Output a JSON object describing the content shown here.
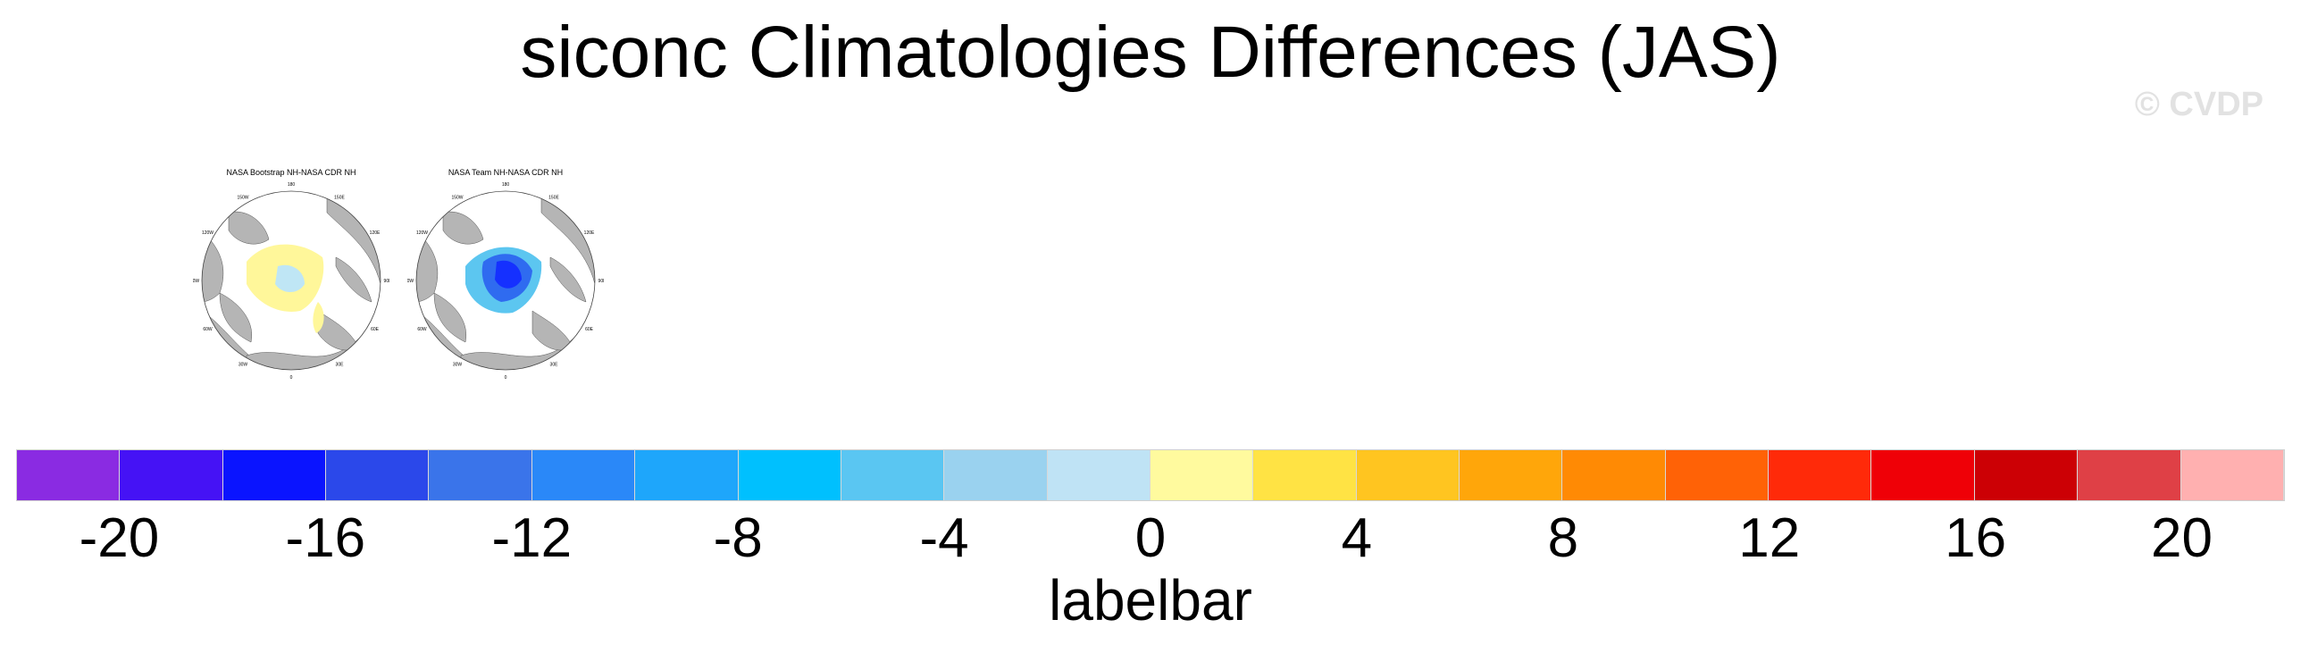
{
  "title": "siconc Climatologies Differences (JAS)",
  "watermark": "© CVDP",
  "panels": [
    {
      "title": "NASA Bootstrap NH-NASA CDR NH",
      "lon_labels": [
        "180",
        "150E",
        "120E",
        "90E",
        "60E",
        "30E",
        "0",
        "30W",
        "60W",
        "90W",
        "120W",
        "150W"
      ],
      "anomaly_palette": [
        "#fff79a",
        "#fff79a",
        "#bfe6f5"
      ]
    },
    {
      "title": "NASA Team NH-NASA CDR NH",
      "lon_labels": [
        "180",
        "150E",
        "120E",
        "90E",
        "60E",
        "30E",
        "0",
        "30W",
        "60W",
        "90W",
        "120W",
        "150W"
      ],
      "anomaly_palette": [
        "#1530ff",
        "#2f6bf0",
        "#5cc6f0"
      ]
    }
  ],
  "labelbar": {
    "label": "labelbar",
    "colors": [
      "#8a2be2",
      "#4512f5",
      "#0a14ff",
      "#2b48ea",
      "#3a74ea",
      "#2a88f8",
      "#1ea6fb",
      "#00c0fe",
      "#5ac6f2",
      "#9ad2ef",
      "#bfe3f5",
      "#fffa9e",
      "#ffe344",
      "#ffc520",
      "#ffa60a",
      "#ff8a04",
      "#ff6206",
      "#ff2a09",
      "#ef0007",
      "#cc0005",
      "#df4046",
      "#ffb0b0"
    ],
    "ticks": [
      "-20",
      "-16",
      "-12",
      "-8",
      "-4",
      "0",
      "4",
      "8",
      "12",
      "16",
      "20"
    ],
    "tick_positions": [
      1,
      3,
      5,
      7,
      9,
      11,
      13,
      15,
      17,
      19,
      21
    ]
  }
}
